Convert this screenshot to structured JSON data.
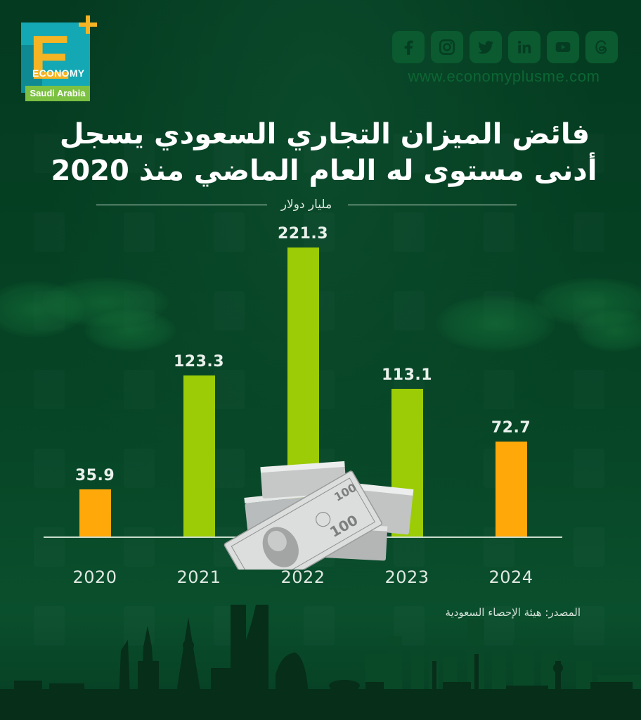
{
  "brand": {
    "logo_letter": "E",
    "logo_word": "ECONOMY",
    "logo_region": "Saudi Arabia",
    "website": "www.economyplusme.com",
    "social_icons": [
      "facebook-icon",
      "instagram-icon",
      "twitter-icon",
      "linkedin-icon",
      "youtube-icon",
      "threads-icon"
    ]
  },
  "title": {
    "line1": "فائض الميزان التجاري السعودي يسجل",
    "line2": "أدنى مستوى له العام الماضي منذ 2020"
  },
  "unit": "مليار دولار",
  "source": "المصدر: هيئة الإحصاء السعودية",
  "colors": {
    "background": "#053d22",
    "bar_green": "#9bcc05",
    "bar_orange": "#ffa809",
    "text": "#eaf1ec"
  },
  "chart_data": {
    "type": "bar",
    "title": "فائض الميزان التجاري السعودي يسجل أدنى مستوى له العام الماضي منذ 2020",
    "ylabel": "مليار دولار",
    "xlabel": "",
    "categories": [
      "2020",
      "2021",
      "2022",
      "2023",
      "2024"
    ],
    "values": [
      35.9,
      123.3,
      221.3,
      113.1,
      72.7
    ],
    "value_labels": [
      "35.9",
      "123.3",
      "221.3",
      "113.1",
      "72.7"
    ],
    "bar_colors": [
      "#ffa809",
      "#9bcc05",
      "#9bcc05",
      "#9bcc05",
      "#ffa809"
    ],
    "ylim": [
      0,
      221.3
    ],
    "grid": false,
    "legend": "none",
    "source": "المصدر: هيئة الإحصاء السعودية"
  }
}
